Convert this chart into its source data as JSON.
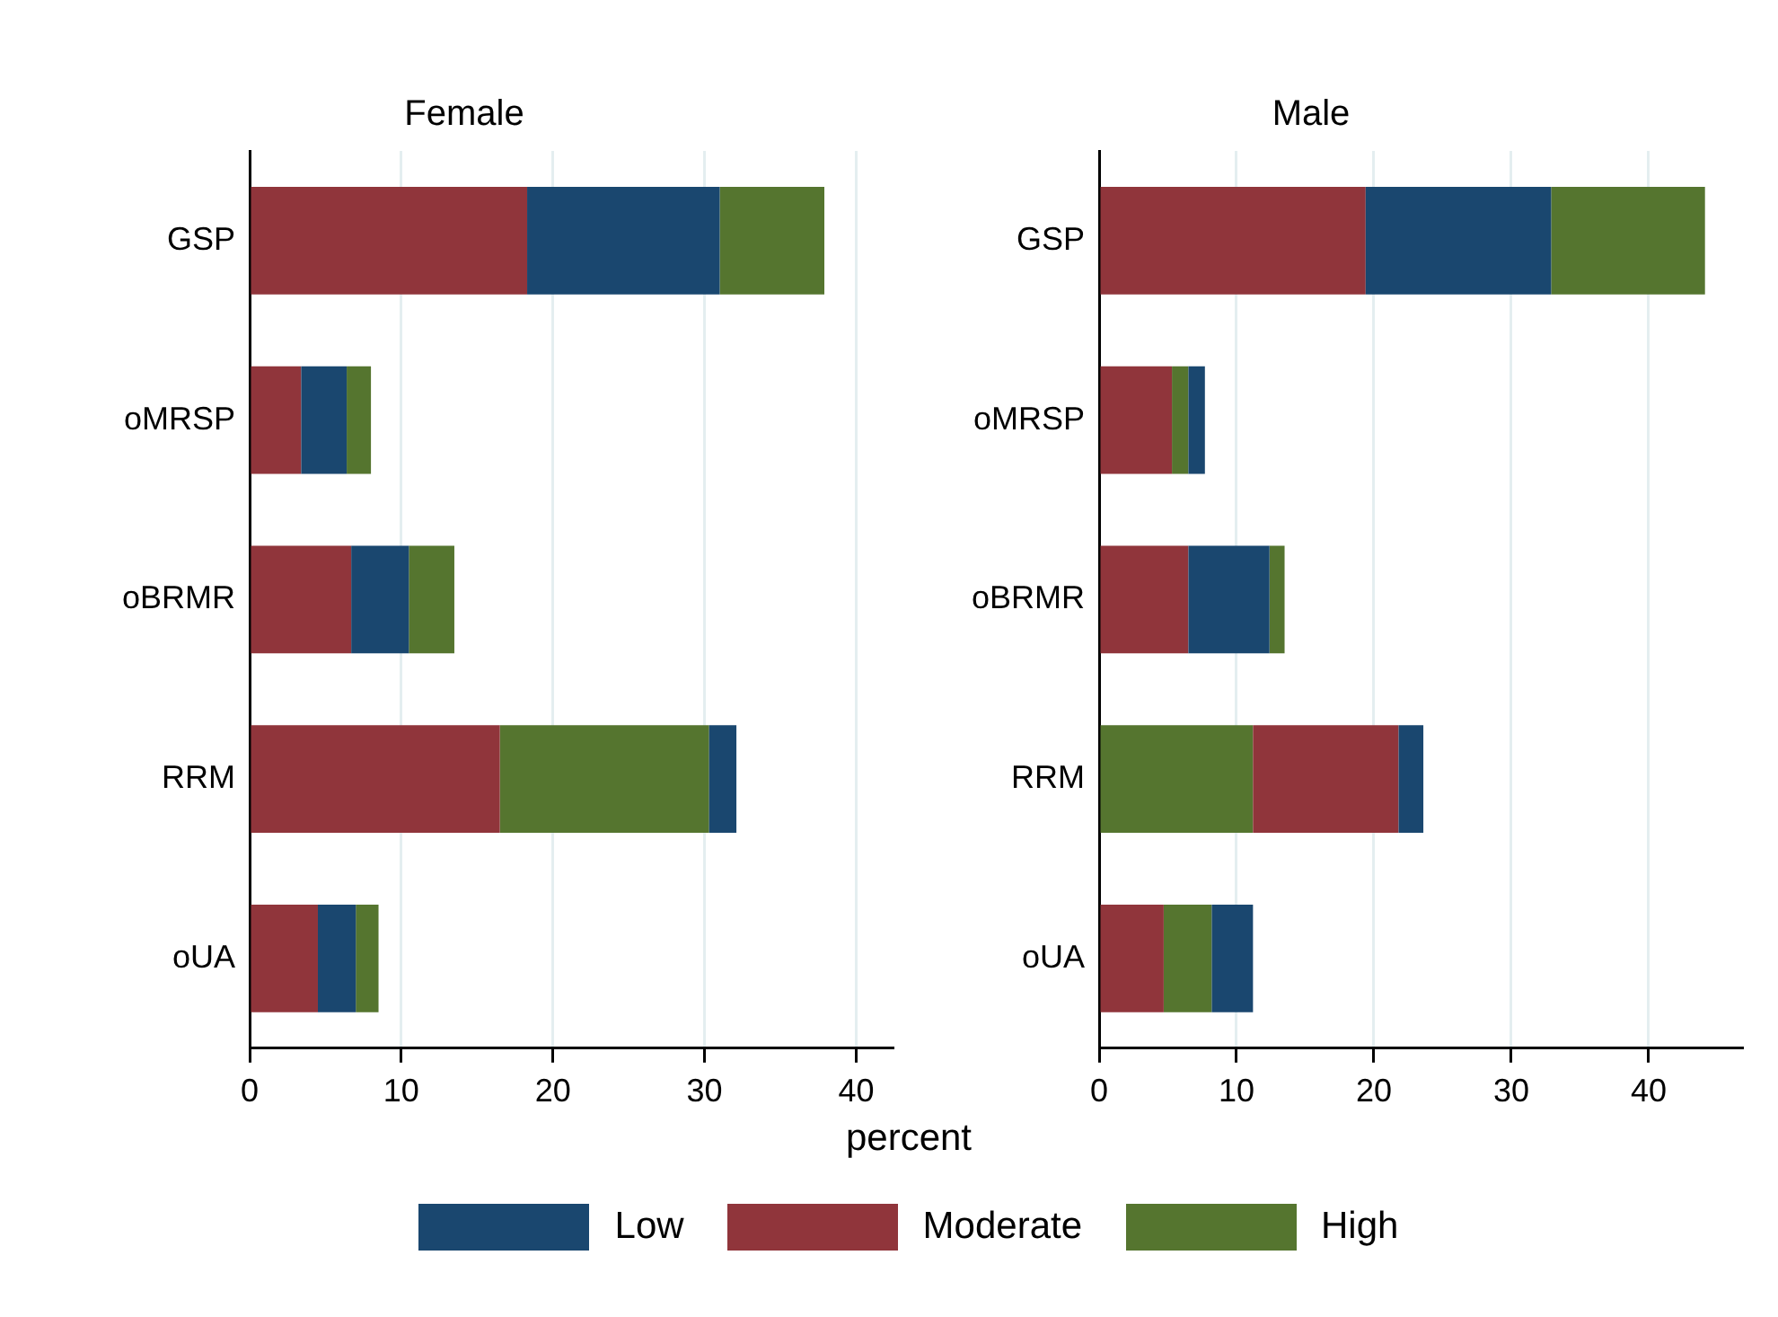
{
  "chart_data": [
    {
      "type": "bar",
      "orientation": "horizontal",
      "title": "Female",
      "xlabel": "percent",
      "legend": "bottom",
      "grid": "x",
      "categories": [
        "GSP",
        "oMRSP",
        "oBRMR",
        "RRM",
        "oUA"
      ],
      "xlim": [
        0,
        42.4
      ],
      "xticks": [
        0,
        10,
        20,
        30,
        40
      ],
      "series": [
        {
          "name": "Low",
          "color": "#1a476f",
          "values": [
            12.7,
            3.0,
            3.8,
            1.8,
            2.5
          ],
          "base": [
            18.3,
            3.4,
            6.7,
            30.3,
            4.5
          ]
        },
        {
          "name": "Moderate",
          "color": "#90353b",
          "values": [
            18.3,
            3.4,
            6.7,
            16.5,
            4.5
          ],
          "base": [
            0,
            0,
            0,
            0,
            0
          ]
        },
        {
          "name": "High",
          "color": "#55752f",
          "values": [
            6.9,
            1.6,
            3.0,
            13.8,
            1.5
          ],
          "base": [
            31.0,
            6.4,
            10.5,
            16.5,
            7.0
          ]
        }
      ]
    },
    {
      "type": "bar",
      "orientation": "horizontal",
      "title": "Male",
      "grid": "x",
      "categories": [
        "GSP",
        "oMRSP",
        "oBRMR",
        "RRM",
        "oUA"
      ],
      "xlim": [
        0,
        46.8
      ],
      "xticks": [
        0,
        10,
        20,
        30,
        40
      ],
      "series": [
        {
          "color": "#1a476f",
          "values": [
            13.5,
            1.2,
            5.9,
            1.8,
            3.0
          ],
          "base": [
            19.4,
            6.5,
            6.5,
            21.8,
            8.2
          ]
        },
        {
          "color": "#90353b",
          "values": [
            19.4,
            5.3,
            6.5,
            10.6,
            4.7
          ],
          "base": [
            0,
            0,
            0,
            11.2,
            0
          ]
        },
        {
          "color": "#55752f",
          "values": [
            11.2,
            1.2,
            1.1,
            11.2,
            3.5
          ],
          "base": [
            32.9,
            5.3,
            12.4,
            0,
            4.7
          ]
        }
      ]
    }
  ]
}
